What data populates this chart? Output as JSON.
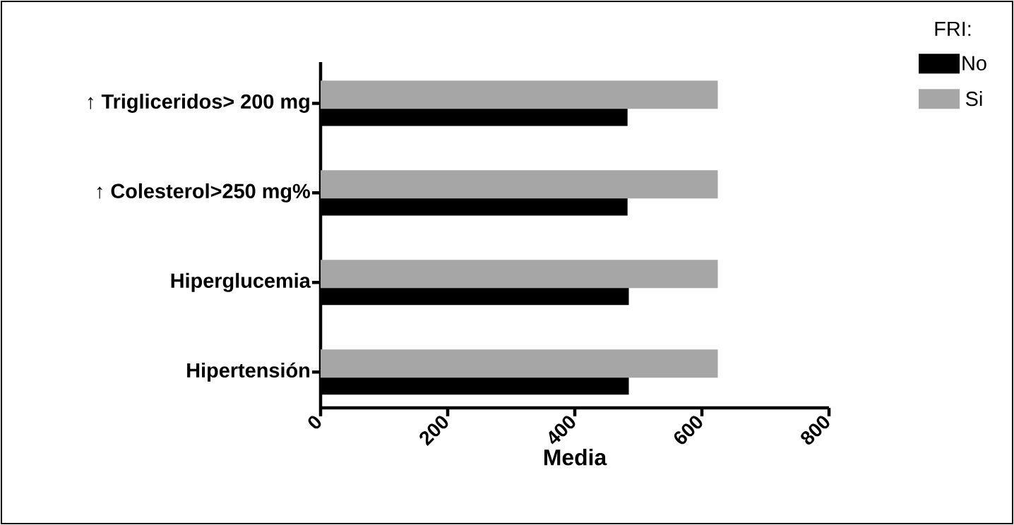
{
  "chart_data": {
    "type": "bar",
    "orientation": "horizontal",
    "xlabel": "Media",
    "legend_title": "FRI:",
    "categories": [
      "↑ Trigliceridos> 200 mg",
      "↑ Colesterol>250 mg%",
      "Hiperglucemia",
      "Hipertensión"
    ],
    "series": [
      {
        "name": "No",
        "color": "#000000",
        "values": [
          483,
          483,
          485,
          485
        ]
      },
      {
        "name": "Si",
        "color": "#a6a6a6",
        "values": [
          625,
          625,
          625,
          625
        ]
      }
    ],
    "xlim": [
      0,
      800
    ],
    "xticks": [
      0,
      200,
      400,
      600,
      800
    ],
    "grid": false,
    "legend": "top right"
  }
}
